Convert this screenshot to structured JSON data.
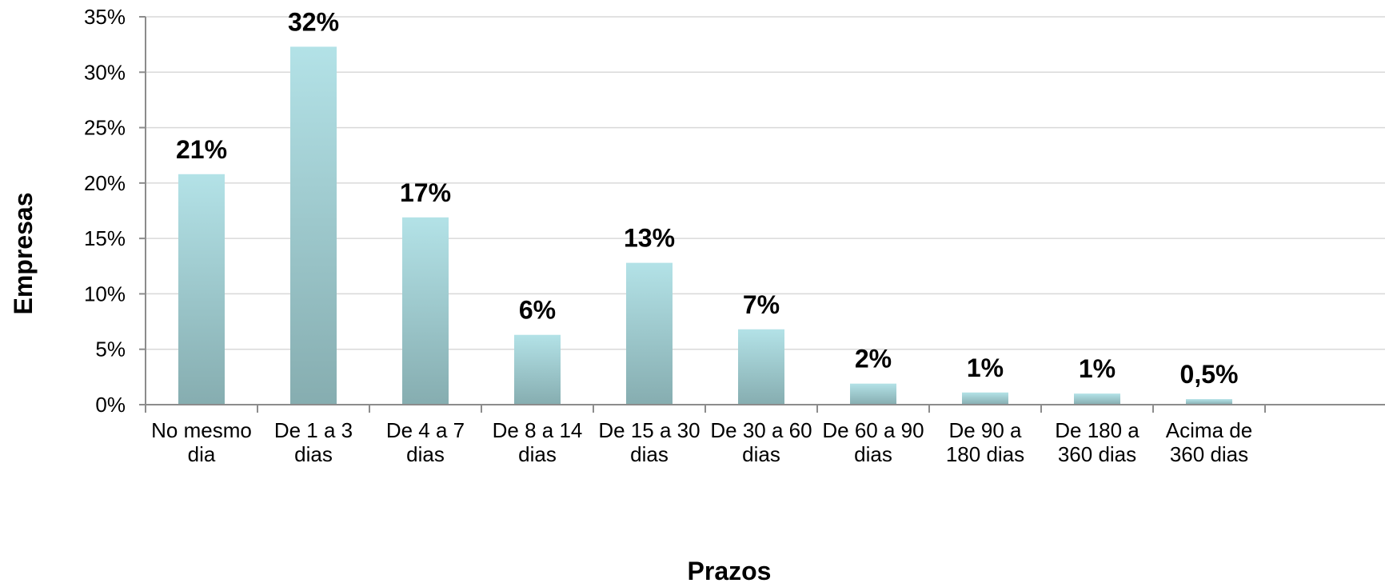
{
  "chart_data": {
    "type": "bar",
    "title": "",
    "xlabel": "Prazos",
    "ylabel": "Empresas",
    "ylim": [
      0,
      35
    ],
    "y_ticks": [
      "0%",
      "5%",
      "10%",
      "15%",
      "20%",
      "25%",
      "30%",
      "35%"
    ],
    "grid": true,
    "legend": "none",
    "categories": [
      [
        "No mesmo",
        "dia"
      ],
      [
        "De 1 a 3",
        "dias"
      ],
      [
        "De 4 a 7",
        "dias"
      ],
      [
        "De 8 a 14",
        "dias"
      ],
      [
        "De 15 a 30",
        "dias"
      ],
      [
        "De 30 a 60",
        "dias"
      ],
      [
        "De 60 a 90",
        "dias"
      ],
      [
        "De 90 a",
        "180 dias"
      ],
      [
        "De 180 a",
        "360 dias"
      ],
      [
        "Acima de",
        "360 dias"
      ]
    ],
    "values": [
      20.8,
      32.3,
      16.9,
      6.3,
      12.8,
      6.8,
      1.9,
      1.1,
      1.0,
      0.5
    ],
    "data_labels": [
      "21%",
      "32%",
      "17%",
      "6%",
      "13%",
      "7%",
      "2%",
      "1%",
      "1%",
      "0,5%"
    ],
    "colors": {
      "bar_top": "#b3e2e7",
      "bar_bottom": "#86adb0"
    }
  }
}
